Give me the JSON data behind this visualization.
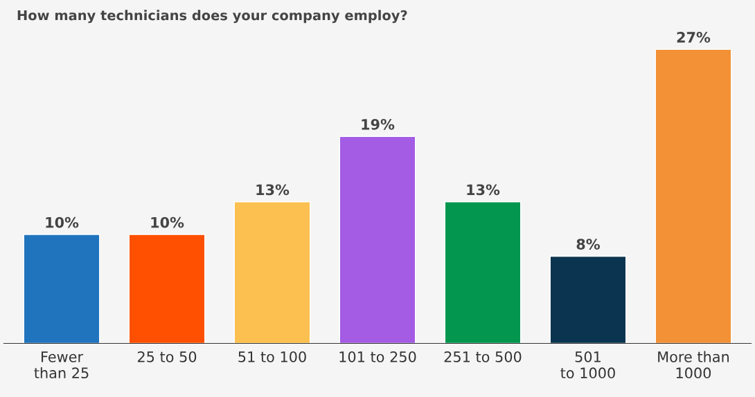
{
  "chart_data": {
    "type": "bar",
    "title": "How many technicians does your company employ?",
    "categories": [
      "Fewer\nthan 25",
      "25 to 50",
      "51 to 100",
      "101 to 250",
      "251 to 500",
      "501\nto 1000",
      "More than\n1000"
    ],
    "values": [
      10,
      10,
      13,
      19,
      13,
      8,
      27
    ],
    "colors": [
      "#2074bd",
      "#fe5000",
      "#fbc04f",
      "#a35ce3",
      "#03964f",
      "#0a344f",
      "#f29135"
    ],
    "value_labels": [
      "10%",
      "10%",
      "13%",
      "19%",
      "13%",
      "8%",
      "27%"
    ],
    "grid": false,
    "legend": false
  }
}
